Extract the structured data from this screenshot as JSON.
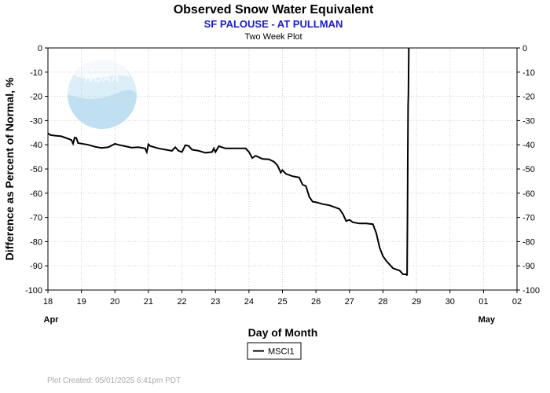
{
  "chart_data": {
    "type": "line",
    "title": "Observed Snow Water Equivalent",
    "subtitle": "SF PALOUSE - AT PULLMAN",
    "subtitle2": "Two Week Plot",
    "xlabel": "Day of Month",
    "ylabel": "Difference as Percent of Normal, %",
    "x_ticks": [
      "18",
      "19",
      "20",
      "21",
      "22",
      "23",
      "24",
      "25",
      "26",
      "27",
      "28",
      "29",
      "30",
      "01",
      "02"
    ],
    "x_months": [
      {
        "label": "Apr",
        "at": "18"
      },
      {
        "label": "May",
        "at": "01"
      }
    ],
    "xlim": [
      18,
      32
    ],
    "ylim": [
      -100,
      0
    ],
    "y_ticks": [
      0,
      -10,
      -20,
      -30,
      -40,
      -50,
      -60,
      -70,
      -80,
      -90,
      -100
    ],
    "grid": true,
    "legend_position": "bottom-center",
    "series": [
      {
        "name": "MSCI1",
        "color": "#000000",
        "x": [
          18.0,
          18.08,
          18.25,
          18.4,
          18.6,
          18.7,
          18.75,
          18.8,
          18.85,
          18.9,
          19.0,
          19.2,
          19.4,
          19.6,
          19.8,
          20.0,
          20.1,
          20.3,
          20.5,
          20.7,
          20.9,
          20.95,
          21.0,
          21.05,
          21.3,
          21.5,
          21.7,
          21.8,
          21.9,
          22.0,
          22.1,
          22.2,
          22.3,
          22.5,
          22.7,
          22.9,
          22.95,
          23.0,
          23.1,
          23.3,
          23.5,
          23.7,
          23.9,
          24.0,
          24.1,
          24.2,
          24.4,
          24.6,
          24.75,
          24.85,
          24.95,
          25.0,
          25.1,
          25.3,
          25.5,
          25.6,
          25.7,
          25.8,
          25.9,
          26.0,
          26.2,
          26.4,
          26.5,
          26.7,
          26.8,
          26.9,
          27.0,
          27.1,
          27.3,
          27.5,
          27.7,
          27.8,
          27.9,
          28.0,
          28.1,
          28.2,
          28.3,
          28.5,
          28.6,
          28.7,
          28.72,
          28.73,
          28.74,
          28.75,
          28.76,
          28.77
        ],
        "y": [
          -35.3,
          -36.0,
          -36.3,
          -36.5,
          -37.5,
          -38.0,
          -39.5,
          -37.0,
          -37.2,
          -39.3,
          -39.5,
          -40.0,
          -40.8,
          -41.3,
          -41.0,
          -39.6,
          -40.0,
          -40.6,
          -41.2,
          -41.0,
          -41.5,
          -43.0,
          -39.8,
          -40.5,
          -41.5,
          -42.0,
          -42.5,
          -41.0,
          -42.5,
          -43.0,
          -40.2,
          -40.5,
          -42.0,
          -42.5,
          -43.3,
          -43.0,
          -41.5,
          -43.0,
          -40.6,
          -41.5,
          -41.5,
          -41.5,
          -41.5,
          -43.0,
          -45.5,
          -44.5,
          -45.8,
          -46.0,
          -47.0,
          -48.5,
          -51.5,
          -50.5,
          -52.0,
          -53.0,
          -53.5,
          -56.5,
          -57.0,
          -61.5,
          -63.5,
          -63.7,
          -64.5,
          -65.0,
          -65.5,
          -66.5,
          -68.5,
          -71.5,
          -71.0,
          -72.0,
          -72.5,
          -72.5,
          -72.8,
          -76.5,
          -82.5,
          -86.0,
          -88.0,
          -89.5,
          -91.0,
          -92.0,
          -93.5,
          -93.5,
          -94.0,
          -70.0,
          -45.0,
          -24.0,
          -19.0,
          0.0
        ]
      }
    ]
  },
  "footer": "Plot Created:  05/01/2025 6:41pm PDT"
}
